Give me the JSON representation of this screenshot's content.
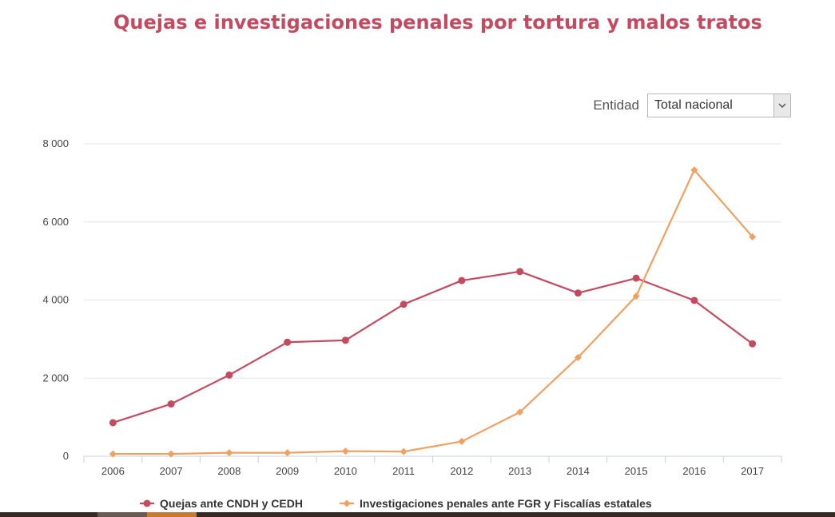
{
  "title": "Quejas e investigaciones penales por tortura y malos tratos",
  "filter": {
    "label": "Entidad",
    "selected": "Total nacional",
    "icon": "chevron-down-icon"
  },
  "chart_data": {
    "type": "line",
    "x": [
      "2006",
      "2007",
      "2008",
      "2009",
      "2010",
      "2011",
      "2012",
      "2013",
      "2014",
      "2015",
      "2016",
      "2017"
    ],
    "ylim": [
      0,
      8000
    ],
    "yticks": [
      0,
      2000,
      4000,
      6000,
      8000
    ],
    "ytick_labels": [
      "0",
      "2 000",
      "4 000",
      "6 000",
      "8 000"
    ],
    "grid": true,
    "legend_position": "bottom",
    "series": [
      {
        "name": "Quejas ante CNDH y CEDH",
        "color": "#c44a60",
        "marker": "circle",
        "values": [
          860,
          1340,
          2080,
          2920,
          2970,
          3890,
          4500,
          4730,
          4180,
          4560,
          3990,
          2880
        ]
      },
      {
        "name": "Investigaciones penales ante FGR y Fiscalías estatales",
        "color": "#f0a060",
        "marker": "diamond",
        "values": [
          60,
          60,
          90,
          90,
          130,
          120,
          380,
          1130,
          2530,
          4100,
          7330,
          5620
        ]
      }
    ]
  }
}
